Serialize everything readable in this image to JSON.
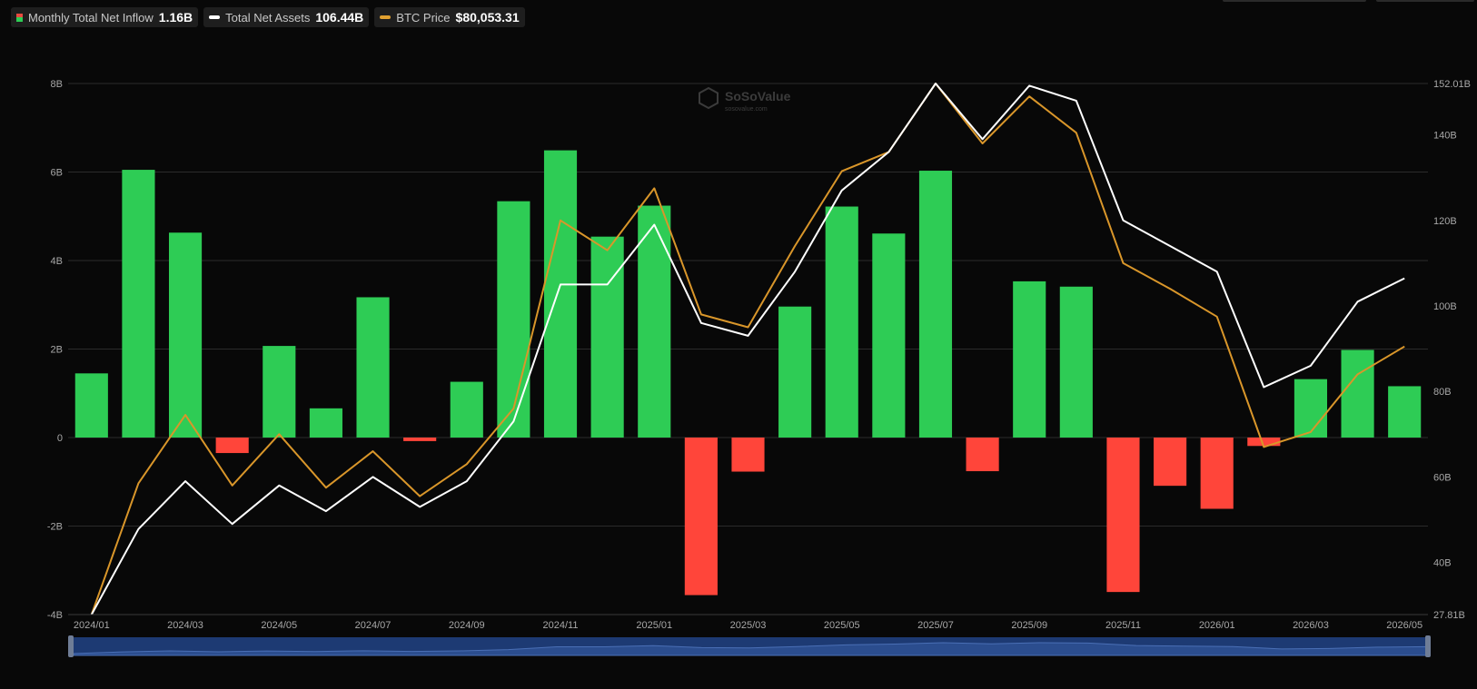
{
  "legend": [
    {
      "label": "Monthly Total Net Inflow",
      "value": "1.16B",
      "icon": "bar-swatch"
    },
    {
      "label": "Total Net Assets",
      "value": "106.44B",
      "icon": "line-swatch",
      "color": "#ffffff"
    },
    {
      "label": "BTC Price",
      "value": "$80,053.31",
      "icon": "line-swatch",
      "color": "#e0a030"
    }
  ],
  "watermark": {
    "brand": "SoSoValue",
    "sub": "sosovalue.com"
  },
  "colors": {
    "positive": "#2ecc55",
    "negative": "#ff453a",
    "assets": "#ffffff",
    "btc": "#d9962a",
    "grid": "#2b2b2b",
    "navigator": "#1d3a73"
  },
  "chart_data": {
    "type": "bar",
    "categories": [
      "2024/01",
      "2024/02",
      "2024/03",
      "2024/04",
      "2024/05",
      "2024/06",
      "2024/07",
      "2024/08",
      "2024/09",
      "2024/10",
      "2024/11",
      "2024/12",
      "2025/01",
      "2025/02",
      "2025/03",
      "2025/04",
      "2025/05",
      "2025/06",
      "2025/07",
      "2025/08",
      "2025/09",
      "2025/10",
      "2025/11",
      "2025/12",
      "2026/01",
      "2026/02",
      "2026/03",
      "2026/04",
      "2026/05"
    ],
    "x_tick_labels": [
      "2024/01",
      "2024/03",
      "2024/05",
      "2024/07",
      "2024/09",
      "2024/11",
      "2025/01",
      "2025/03",
      "2025/05",
      "2025/07",
      "2025/09",
      "2025/11",
      "2026/01",
      "2026/03",
      "2026/05"
    ],
    "left_axis": {
      "ticks": [
        "8B",
        "6B",
        "4B",
        "2B",
        "0",
        "-2B",
        "-4B"
      ],
      "ylim": [
        -4,
        8
      ],
      "unit": "B"
    },
    "right_axis": {
      "ticks": [
        "152.01B",
        "140B",
        "120B",
        "100B",
        "80B",
        "60B",
        "40B",
        "27.81B"
      ],
      "ylim": [
        27.81,
        152.01
      ],
      "unit": "B"
    },
    "series": [
      {
        "name": "Monthly Total Net Inflow",
        "type": "bar",
        "axis": "left",
        "values": [
          1.45,
          6.05,
          4.63,
          -0.35,
          2.07,
          0.66,
          3.17,
          -0.08,
          1.26,
          5.34,
          6.49,
          4.54,
          5.24,
          -3.56,
          -0.77,
          2.96,
          5.22,
          4.61,
          6.03,
          -0.76,
          3.53,
          3.41,
          -3.49,
          -1.09,
          -1.61,
          -0.19,
          1.32,
          1.98,
          1.16
        ]
      },
      {
        "name": "Total Net Assets",
        "type": "line",
        "axis": "right",
        "values": [
          27.8,
          47.8,
          59.0,
          49.0,
          58.0,
          52.0,
          60.0,
          53.0,
          59.0,
          73.0,
          105.0,
          105.0,
          119.0,
          96.0,
          93.0,
          108.0,
          127.0,
          136.0,
          152.0,
          139.0,
          151.5,
          148.0,
          120.0,
          114.0,
          108.0,
          81.0,
          86.0,
          101.0,
          106.44
        ]
      },
      {
        "name": "BTC Price",
        "type": "line",
        "axis": "right",
        "values": [
          27.8,
          58.5,
          74.5,
          58.0,
          70.0,
          57.5,
          66.0,
          55.5,
          63.0,
          76.0,
          120.0,
          113.0,
          127.5,
          98.0,
          95.0,
          114.0,
          131.5,
          136.0,
          152.0,
          138.0,
          149.0,
          140.5,
          110.0,
          104.0,
          97.5,
          67.0,
          70.5,
          84.0,
          90.5
        ]
      }
    ]
  }
}
